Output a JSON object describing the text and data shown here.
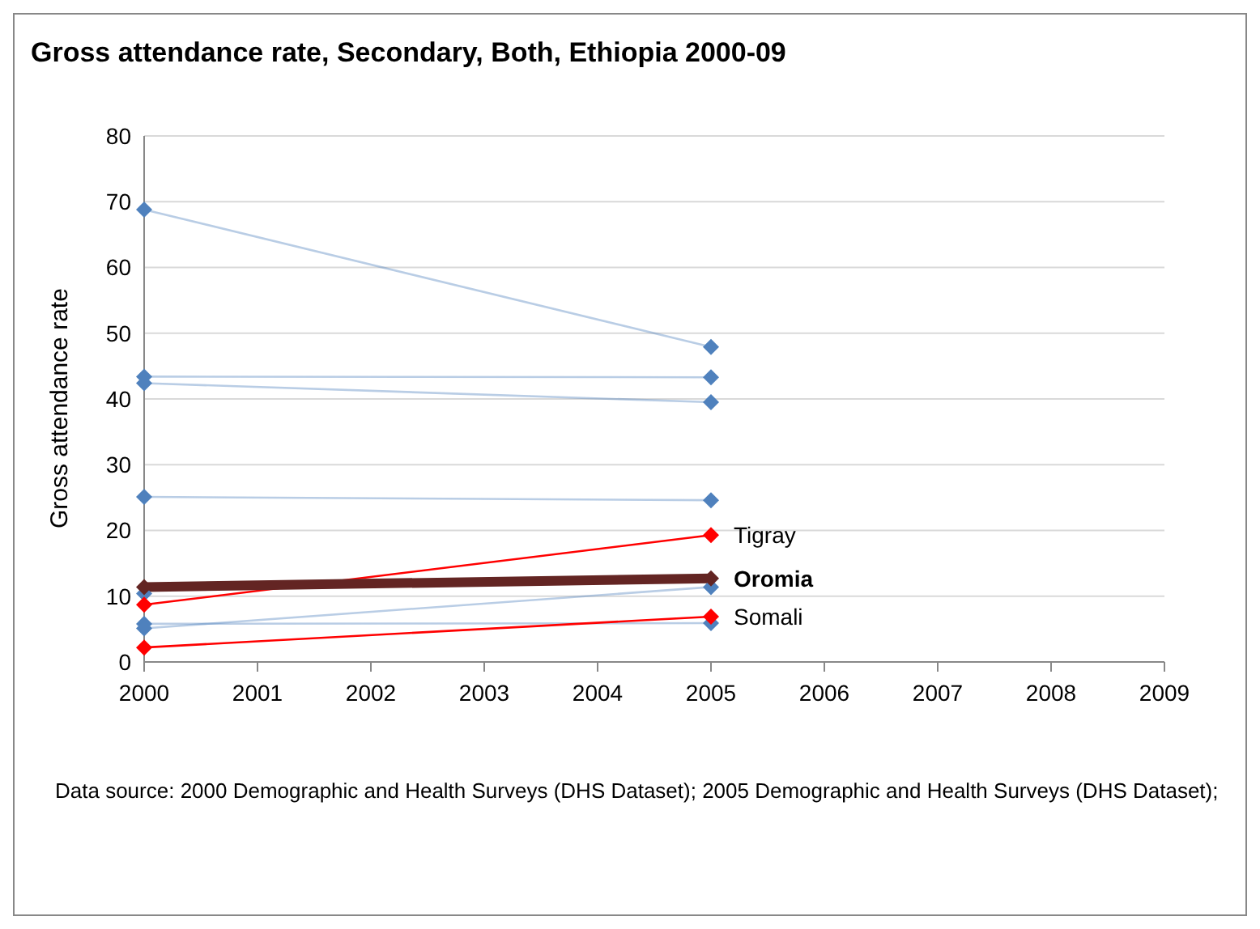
{
  "chart_data": {
    "type": "line",
    "title": "Gross attendance rate, Secondary, Both, Ethiopia 2000-09",
    "ylabel": "Gross attendance rate",
    "categories": [
      "2000",
      "2001",
      "2002",
      "2003",
      "2004",
      "2005",
      "2006",
      "2007",
      "2008",
      "2009"
    ],
    "series": [
      {
        "color": "#4f81bd",
        "values": [
          68.8,
          null,
          null,
          null,
          null,
          47.9,
          null,
          null,
          null,
          null
        ]
      },
      {
        "color": "#4f81bd",
        "values": [
          43.4,
          null,
          null,
          null,
          null,
          43.3,
          null,
          null,
          null,
          null
        ]
      },
      {
        "color": "#4f81bd",
        "values": [
          42.4,
          null,
          null,
          null,
          null,
          39.5,
          null,
          null,
          null,
          null
        ]
      },
      {
        "color": "#4f81bd",
        "values": [
          25.1,
          null,
          null,
          null,
          null,
          24.6,
          null,
          null,
          null,
          null
        ]
      },
      {
        "color": "#4f81bd",
        "values": [
          10.4,
          null,
          null,
          null,
          null,
          null,
          null,
          null,
          null,
          null
        ]
      },
      {
        "color": "#4f81bd",
        "values": [
          5.8,
          null,
          null,
          null,
          null,
          5.9,
          null,
          null,
          null,
          null
        ]
      },
      {
        "color": "#4f81bd",
        "values": [
          5.1,
          null,
          null,
          null,
          null,
          11.4,
          null,
          null,
          null,
          null
        ]
      },
      {
        "name": "Tigray",
        "color": "#ff0000",
        "values": [
          8.7,
          null,
          null,
          null,
          null,
          19.3,
          null,
          null,
          null,
          null
        ]
      },
      {
        "name": "Somali",
        "color": "#ff0000",
        "values": [
          2.2,
          null,
          null,
          null,
          null,
          6.9,
          null,
          null,
          null,
          null
        ]
      },
      {
        "name": "Oromia",
        "color": "#632523",
        "values": [
          11.4,
          null,
          null,
          null,
          null,
          12.7,
          null,
          null,
          null,
          null
        ]
      }
    ],
    "ylim": [
      0,
      80
    ],
    "yticks": [
      0,
      10,
      20,
      30,
      40,
      50,
      60,
      70,
      80
    ],
    "grid": "y",
    "legend": false,
    "marker": "diamond",
    "line_style": "solid",
    "annotations": [
      "Data source: 2000 Demographic and Health Surveys (DHS Dataset); 2005 Demographic and Health Surveys (DHS Dataset);"
    ]
  }
}
